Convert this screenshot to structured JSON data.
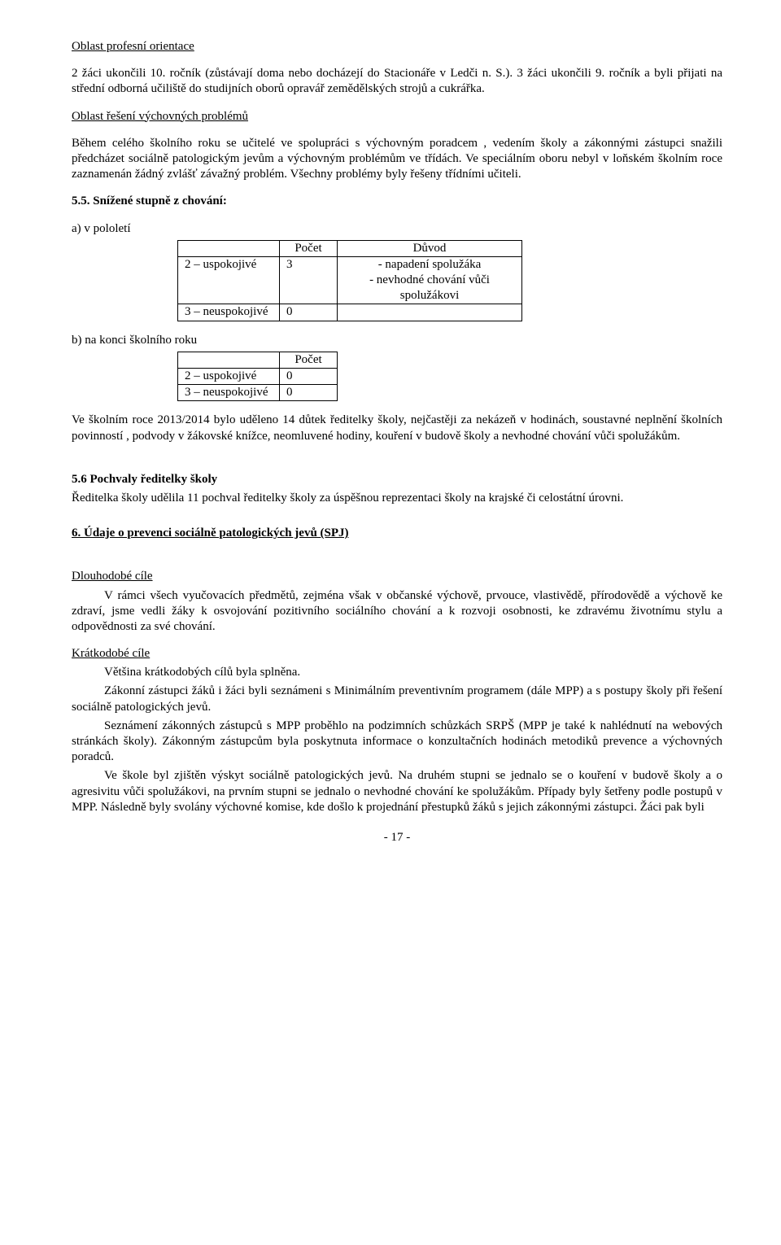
{
  "h_orient": "Oblast profesní orientace",
  "p_orient": "2 žáci ukončili 10. ročník (zůstávají doma nebo docházejí do Stacionáře v Ledči n. S.). 3 žáci ukončili 9. ročník a byli přijati na střední odborná učiliště do studijních oborů opravář zemědělských strojů a cukrářka.",
  "h_problems": "Oblast řešení výchovných problémů",
  "p_problems": "Během celého školního roku se učitelé ve spolupráci s výchovným poradcem , vedením školy a zákonnými zástupci snažili předcházet sociálně patologickým jevům a výchovným problémům  ve třídách. Ve speciálním oboru nebyl v loňském školním roce zaznamenán žádný zvlášť závažný problém. Všechny problémy byly řešeny třídními učiteli.",
  "h55": "5.5. Snížené stupně z chování:",
  "a_label": "a) v pololetí",
  "tableA": {
    "h_count": "Počet",
    "h_reason": "Důvod",
    "r1": {
      "grade": "2 – uspokojivé",
      "count": "3",
      "reason1": "- napadení spolužáka",
      "reason2": "- nevhodné chování vůči",
      "reason3": "spolužákovi"
    },
    "r2": {
      "grade": "3 – neuspokojivé",
      "count": "0"
    }
  },
  "b_label": "b) na konci školního roku",
  "tableB": {
    "h_count": "Počet",
    "r1": {
      "grade": "2 – uspokojivé",
      "count": "0"
    },
    "r2": {
      "grade": "3 – neuspokojivé",
      "count": "0"
    }
  },
  "p_dutky": "Ve školním roce 2013/2014 bylo uděleno 14 důtek ředitelky školy, nejčastěji za nekázeň v hodinách, soustavné neplnění školních povinností , podvody v žákovské knížce, neomluvené hodiny, kouření v budově školy a nevhodné chování vůči spolužákům.",
  "h56": "5.6 Pochvaly ředitelky školy",
  "p56": "Ředitelka školy udělila 11 pochval ředitelky školy za úspěšnou reprezentaci školy na krajské či celostátní úrovni.",
  "h6": "6. Údaje o prevenci sociálně patologických jevů (SPJ)",
  "h_long": "Dlouhodobé cíle",
  "p_long": "V rámci všech vyučovacích předmětů, zejména však v občanské výchově, prvouce, vlastivědě, přírodovědě  a výchově ke zdraví, jsme vedli žáky k osvojování pozitivního sociálního chování a k rozvoji osobnosti, ke zdravému životnímu stylu a odpovědnosti za své chování.",
  "h_short": "Krátkodobé cíle",
  "p_short1": "Většina krátkodobých cílů byla splněna.",
  "p_short2": "Zákonní zástupci žáků i žáci byli seznámeni s Minimálním preventivním programem (dále MPP) a s postupy školy při řešení sociálně patologických jevů.",
  "p_short3": "Seznámení zákonných zástupců s MPP proběhlo na podzimních schůzkách SRPŠ (MPP je také k nahlédnutí na webových stránkách školy). Zákonným zástupcům byla poskytnuta informace o konzultačních hodinách metodiků prevence a výchovných poradců.",
  "p_short4": "Ve škole byl zjištěn výskyt sociálně patologických jevů. Na druhém stupni se jednalo se o kouření v budově školy a o agresivitu vůči spolužákovi, na prvním stupni se jednalo o nevhodné chování ke spolužákům. Případy byly šetřeny podle postupů v MPP. Následně byly svolány výchovné komise, kde došlo k projednání přestupků žáků s jejich zákonnými zástupci. Žáci pak byli",
  "footer": "- 17 -"
}
